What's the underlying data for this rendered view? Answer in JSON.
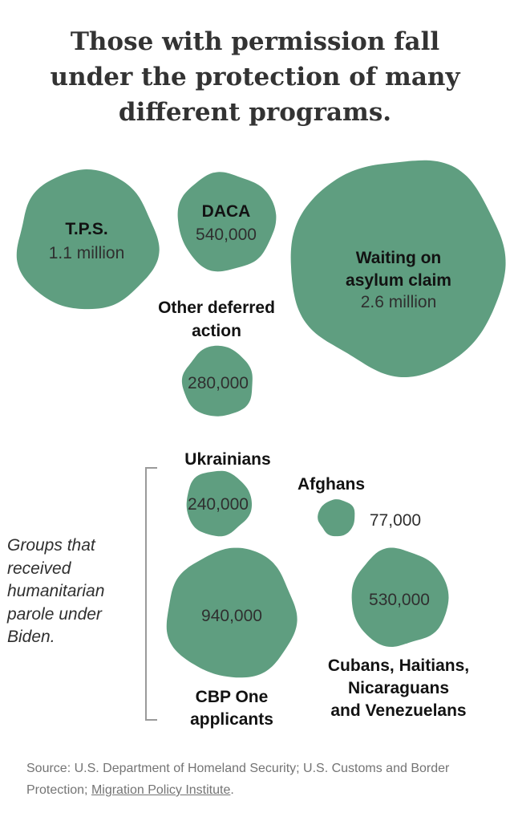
{
  "title_lines": [
    "Those with permission fall",
    "under the protection of many",
    "different programs."
  ],
  "note_lines": [
    "Groups that",
    "received",
    "humanitarian",
    "parole under",
    "Biden."
  ],
  "source": {
    "prefix": "Source: U.S. Department of Homeland Security; U.S. Customs and Border Protection; ",
    "link": "Migration Policy Institute",
    "suffix": "."
  },
  "colors": {
    "bubble": "#5f9e80",
    "bracket": "#9a9a9a"
  },
  "chart_data": {
    "type": "bubble",
    "size_encoding": "area",
    "items": [
      {
        "id": "tps",
        "label_lines": [
          "T.P.S."
        ],
        "value": 1100000,
        "value_label": "1.1 million"
      },
      {
        "id": "daca",
        "label_lines": [
          "DACA"
        ],
        "value": 540000,
        "value_label": "540,000"
      },
      {
        "id": "asylum",
        "label_lines": [
          "Waiting on",
          "asylum claim"
        ],
        "value": 2600000,
        "value_label": "2.6 million"
      },
      {
        "id": "other",
        "label_lines": [
          "Other deferred",
          "action"
        ],
        "value": 280000,
        "value_label": "280,000"
      },
      {
        "id": "ukr",
        "label_lines": [
          "Ukrainians"
        ],
        "value": 240000,
        "value_label": "240,000",
        "group": "parole"
      },
      {
        "id": "afg",
        "label_lines": [
          "Afghans"
        ],
        "value": 77000,
        "value_label": "77,000",
        "group": "parole"
      },
      {
        "id": "cbp",
        "label_lines": [
          "CBP One",
          "applicants"
        ],
        "value": 940000,
        "value_label": "940,000",
        "group": "parole"
      },
      {
        "id": "chnv",
        "label_lines": [
          "Cubans, Haitians,",
          "Nicaraguans",
          "and Venezuelans"
        ],
        "value": 530000,
        "value_label": "530,000",
        "group": "parole"
      }
    ]
  }
}
